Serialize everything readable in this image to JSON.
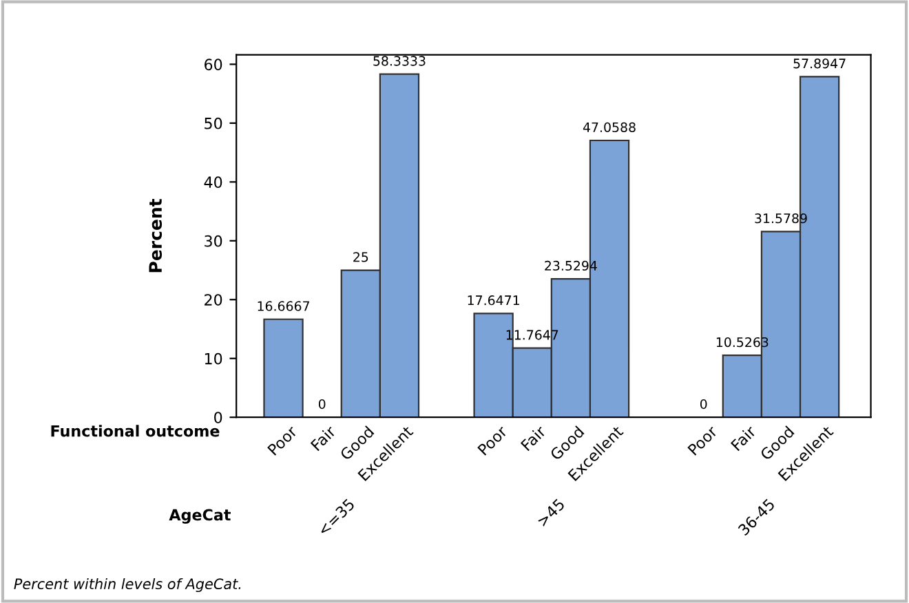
{
  "chart_data": {
    "type": "bar",
    "ylabel": "Percent",
    "xlabel": "AgeCat",
    "legend_title": "Functional outcome",
    "categories": [
      "<=35",
      ">45",
      "36-45"
    ],
    "series": [
      {
        "name": "Poor",
        "color": "#7ba3d8",
        "values": [
          16.6667,
          17.6471,
          0
        ]
      },
      {
        "name": "Fair",
        "color": "#7ba3d8",
        "values": [
          0,
          11.7647,
          10.5263
        ]
      },
      {
        "name": "Good",
        "color": "#7ba3d8",
        "values": [
          25,
          23.5294,
          31.5789
        ]
      },
      {
        "name": "Excellent",
        "color": "#7ba3d8",
        "values": [
          58.3333,
          47.0588,
          57.8947
        ]
      }
    ],
    "ylim": [
      0,
      61.6
    ],
    "yticks": [
      0,
      10,
      20,
      30,
      40,
      50,
      60
    ],
    "data_labels": true,
    "grid": false,
    "legend": false,
    "annotations": [
      "Percent within levels of AgeCat."
    ]
  }
}
